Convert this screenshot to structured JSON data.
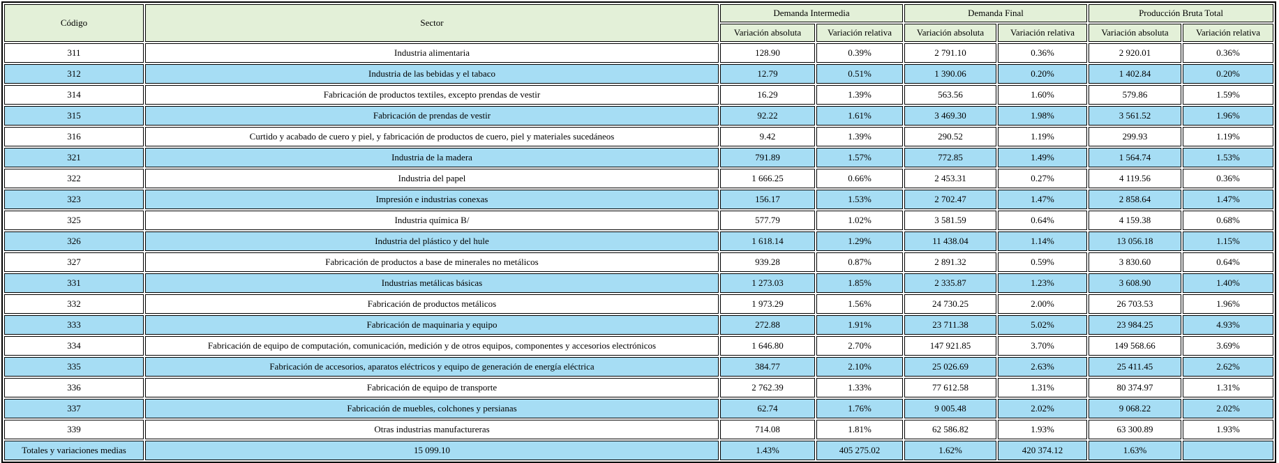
{
  "table": {
    "header": {
      "code": "Código",
      "sector": "Sector",
      "groups": [
        {
          "label": "Demanda Intermedia",
          "sub": [
            "Variación absoluta",
            "Variación relativa"
          ]
        },
        {
          "label": "Demanda Final",
          "sub": [
            "Variación absoluta",
            "Variación relativa"
          ]
        },
        {
          "label": "Producción Bruta Total",
          "sub": [
            "Variación absoluta",
            "Variación relativa"
          ]
        }
      ]
    },
    "rows": [
      [
        "311",
        "Industria alimentaria",
        "128.90",
        "0.39%",
        "2 791.10",
        "0.36%",
        "2 920.01",
        "0.36%"
      ],
      [
        "312",
        "Industria de las bebidas y el tabaco",
        "12.79",
        "0.51%",
        "1 390.06",
        "0.20%",
        "1 402.84",
        "0.20%"
      ],
      [
        "314",
        "Fabricación de productos textiles, excepto prendas de vestir",
        "16.29",
        "1.39%",
        "563.56",
        "1.60%",
        "579.86",
        "1.59%"
      ],
      [
        "315",
        "Fabricación de prendas de vestir",
        "92.22",
        "1.61%",
        "3 469.30",
        "1.98%",
        "3 561.52",
        "1.96%"
      ],
      [
        "316",
        "Curtido y acabado de cuero y piel, y fabricación de productos de cuero, piel y materiales sucedáneos",
        "9.42",
        "1.39%",
        "290.52",
        "1.19%",
        "299.93",
        "1.19%"
      ],
      [
        "321",
        "Industria de la madera",
        "791.89",
        "1.57%",
        "772.85",
        "1.49%",
        "1 564.74",
        "1.53%"
      ],
      [
        "322",
        "Industria del papel",
        "1 666.25",
        "0.66%",
        "2 453.31",
        "0.27%",
        "4 119.56",
        "0.36%"
      ],
      [
        "323",
        "Impresión e industrias conexas",
        "156.17",
        "1.53%",
        "2 702.47",
        "1.47%",
        "2 858.64",
        "1.47%"
      ],
      [
        "325",
        "Industria química B/",
        "577.79",
        "1.02%",
        "3 581.59",
        "0.64%",
        "4 159.38",
        "0.68%"
      ],
      [
        "326",
        "Industria del plástico y del hule",
        "1 618.14",
        "1.29%",
        "11 438.04",
        "1.14%",
        "13 056.18",
        "1.15%"
      ],
      [
        "327",
        "Fabricación de productos a base de minerales no metálicos",
        "939.28",
        "0.87%",
        "2 891.32",
        "0.59%",
        "3 830.60",
        "0.64%"
      ],
      [
        "331",
        "Industrias metálicas básicas",
        "1 273.03",
        "1.85%",
        "2 335.87",
        "1.23%",
        "3 608.90",
        "1.40%"
      ],
      [
        "332",
        "Fabricación de productos metálicos",
        "1 973.29",
        "1.56%",
        "24 730.25",
        "2.00%",
        "26 703.53",
        "1.96%"
      ],
      [
        "333",
        "Fabricación de maquinaria y equipo",
        "272.88",
        "1.91%",
        "23 711.38",
        "5.02%",
        "23 984.25",
        "4.93%"
      ],
      [
        "334",
        "Fabricación de equipo de computación, comunicación, medición y de otros equipos, componentes y accesorios electrónicos",
        "1 646.80",
        "2.70%",
        "147 921.85",
        "3.70%",
        "149 568.66",
        "3.69%"
      ],
      [
        "335",
        "Fabricación de accesorios, aparatos eléctricos y equipo de generación de energía eléctrica",
        "384.77",
        "2.10%",
        "25 026.69",
        "2.63%",
        "25 411.45",
        "2.62%"
      ],
      [
        "336",
        "Fabricación de equipo de transporte",
        "2 762.39",
        "1.33%",
        "77 612.58",
        "1.31%",
        "80 374.97",
        "1.31%"
      ],
      [
        "337",
        "Fabricación de muebles, colchones y persianas",
        "62.74",
        "1.76%",
        "9 005.48",
        "2.02%",
        "9 068.22",
        "2.02%"
      ],
      [
        "339",
        "Otras industrias manufactureras",
        "714.08",
        "1.81%",
        "62 586.82",
        "1.93%",
        "63 300.89",
        "1.93%"
      ]
    ],
    "totals_row": [
      "Totales y variaciones medias",
      "15 099.10",
      "1.43%",
      "405 275.02",
      "1.62%",
      "420 374.12",
      "1.63%",
      ""
    ],
    "colors": {
      "header_bg": "#e3f0d8",
      "row_alt_bg": "#a6ddf4",
      "row_bg": "#ffffff",
      "border": "#000000"
    }
  }
}
